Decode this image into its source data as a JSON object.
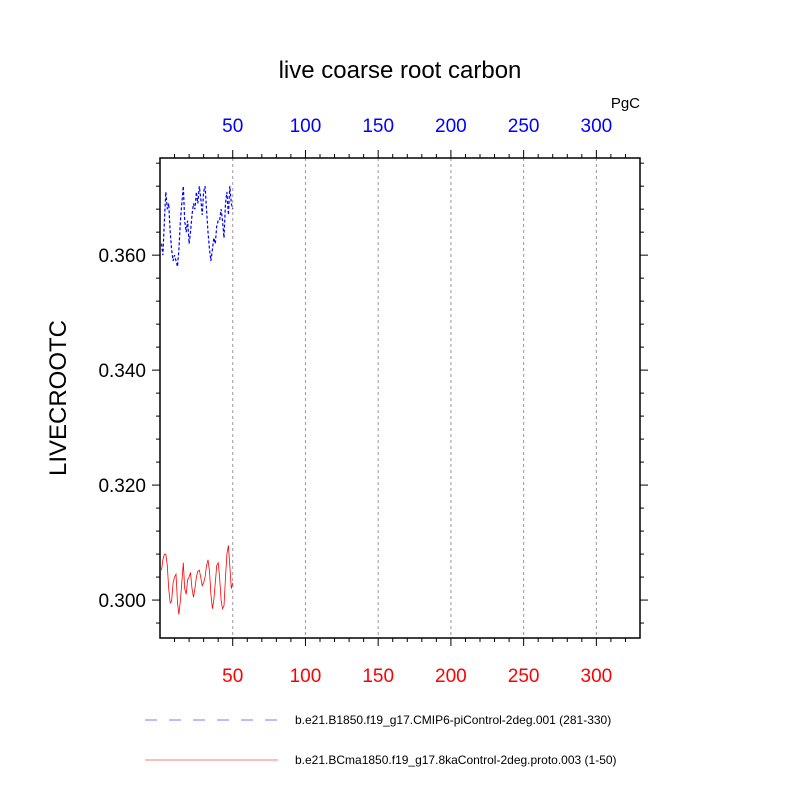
{
  "chart_data": {
    "type": "line",
    "title": "live coarse root carbon",
    "units": "PgC",
    "ylabel": "LIVECROOTC",
    "xlabel": "",
    "xlim": [
      0,
      330
    ],
    "ylim": [
      0.2934,
      0.3769
    ],
    "grid": "vertical dashed at major x ticks",
    "x_ticks": [
      50,
      100,
      150,
      200,
      250,
      300
    ],
    "x_tick_labels_top": [
      "50",
      "100",
      "150",
      "200",
      "250",
      "300"
    ],
    "x_tick_labels_bottom": [
      "50",
      "100",
      "150",
      "200",
      "250",
      "300"
    ],
    "top_axis_color": "#0000ff",
    "bottom_axis_color": "#ff0000",
    "y_ticks": [
      0.3,
      0.32,
      0.34,
      0.36
    ],
    "y_tick_labels": [
      "0.300",
      "0.320",
      "0.340",
      "0.360"
    ],
    "legend_placement": "bottom",
    "series": [
      {
        "name": "b.e21.B1850.f19_g17.CMIP6-piControl-2deg.001 (281-330)",
        "color": "#0000ff",
        "style": "dashed",
        "x": [
          1,
          2,
          3,
          4,
          5,
          6,
          7,
          8,
          9,
          10,
          11,
          12,
          13,
          14,
          15,
          16,
          17,
          18,
          19,
          20,
          21,
          22,
          23,
          24,
          25,
          26,
          27,
          28,
          29,
          30,
          31,
          32,
          33,
          34,
          35,
          36,
          37,
          38,
          39,
          40,
          41,
          42,
          43,
          44,
          45,
          46,
          47,
          48,
          49,
          50
        ],
        "values": [
          0.362,
          0.36,
          0.366,
          0.371,
          0.368,
          0.369,
          0.364,
          0.361,
          0.359,
          0.36,
          0.359,
          0.358,
          0.361,
          0.366,
          0.369,
          0.372,
          0.366,
          0.364,
          0.366,
          0.362,
          0.364,
          0.367,
          0.369,
          0.368,
          0.371,
          0.369,
          0.372,
          0.37,
          0.367,
          0.371,
          0.372,
          0.368,
          0.364,
          0.361,
          0.359,
          0.361,
          0.363,
          0.362,
          0.365,
          0.366,
          0.366,
          0.368,
          0.366,
          0.363,
          0.369,
          0.371,
          0.367,
          0.372,
          0.369,
          0.368
        ]
      },
      {
        "name": "b.e21.BCma1850.f19_g17.8kaControl-2deg.proto.003 (1-50)",
        "color": "#ff0000",
        "style": "solid",
        "x": [
          1,
          2,
          3,
          4,
          5,
          6,
          7,
          8,
          9,
          10,
          11,
          12,
          13,
          14,
          15,
          16,
          17,
          18,
          19,
          20,
          21,
          22,
          23,
          24,
          25,
          26,
          27,
          28,
          29,
          30,
          31,
          32,
          33,
          34,
          35,
          36,
          37,
          38,
          39,
          40,
          41,
          42,
          43,
          44,
          45,
          46,
          47,
          48,
          49,
          50
        ],
        "values": [
          0.3052,
          0.307,
          0.308,
          0.308,
          0.306,
          0.302,
          0.2995,
          0.2998,
          0.303,
          0.304,
          0.3045,
          0.2995,
          0.2975,
          0.3,
          0.303,
          0.3065,
          0.302,
          0.301,
          0.3035,
          0.304,
          0.3048,
          0.302,
          0.3005,
          0.302,
          0.304,
          0.305,
          0.3052,
          0.304,
          0.3025,
          0.303,
          0.304,
          0.306,
          0.307,
          0.305,
          0.301,
          0.2985,
          0.3,
          0.303,
          0.306,
          0.3065,
          0.304,
          0.3,
          0.2985,
          0.299,
          0.304,
          0.308,
          0.3095,
          0.306,
          0.302,
          0.303
        ]
      }
    ]
  }
}
